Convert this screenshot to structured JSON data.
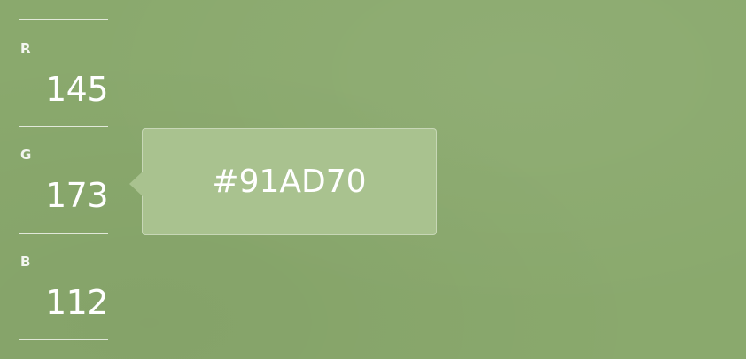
{
  "color": {
    "hex": "#91AD70",
    "background": "#8aa96d",
    "tooltip_background": "#a9c28f"
  },
  "channels": [
    {
      "label": "R",
      "value": "145"
    },
    {
      "label": "G",
      "value": "173"
    },
    {
      "label": "B",
      "value": "112"
    }
  ]
}
